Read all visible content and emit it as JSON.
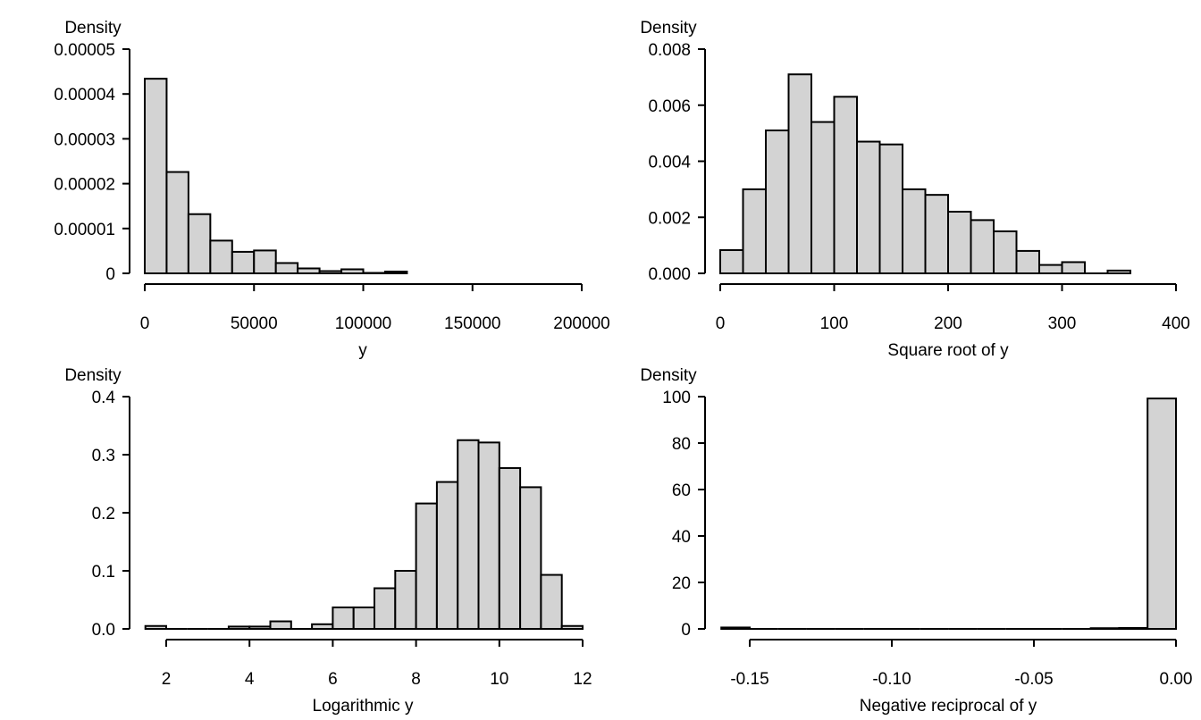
{
  "chart_data": [
    {
      "type": "bar",
      "ylabel": "Density",
      "xlabel": "y",
      "xlim": [
        0,
        200000
      ],
      "ylim": [
        0,
        5e-05
      ],
      "bin_width": 10000,
      "bin_start": 0,
      "values": [
        4.34e-05,
        2.26e-05,
        1.32e-05,
        7.3e-06,
        4.8e-06,
        5.1e-06,
        2.3e-06,
        1.1e-06,
        5e-07,
        9e-07,
        1e-07,
        4e-07
      ],
      "xticks": [
        0,
        50000,
        100000,
        150000,
        200000
      ],
      "xtick_labels": [
        "0",
        "50000",
        "100000",
        "150000",
        "200000"
      ],
      "yticks": [
        0,
        1e-05,
        2e-05,
        3e-05,
        4e-05,
        5e-05
      ],
      "ytick_labels": [
        "0",
        "0.00001",
        "0.00002",
        "0.00003",
        "0.00004",
        "0.00005"
      ],
      "bar_color": "#d3d3d3"
    },
    {
      "type": "bar",
      "ylabel": "Density",
      "xlabel": "Square root of y",
      "xlim": [
        0,
        400
      ],
      "ylim": [
        0,
        0.008
      ],
      "bin_width": 20,
      "bin_start": 0,
      "values": [
        0.00083,
        0.003,
        0.0051,
        0.0071,
        0.0054,
        0.0063,
        0.0047,
        0.0046,
        0.003,
        0.0028,
        0.0022,
        0.0019,
        0.0015,
        0.0008,
        0.0003,
        0.0004,
        0,
        0.0001
      ],
      "xticks": [
        0,
        100,
        200,
        300,
        400
      ],
      "xtick_labels": [
        "0",
        "100",
        "200",
        "300",
        "400"
      ],
      "yticks": [
        0,
        0.002,
        0.004,
        0.006,
        0.008
      ],
      "ytick_labels": [
        "0.000",
        "0.002",
        "0.004",
        "0.006",
        "0.008"
      ],
      "bar_color": "#d3d3d3"
    },
    {
      "type": "bar",
      "ylabel": "Density",
      "xlabel": "Logarithmic y",
      "xlim": [
        2,
        12
      ],
      "ylim": [
        0,
        0.4
      ],
      "bin_width": 0.5,
      "bin_start": 1.5,
      "values": [
        0.005,
        0,
        0,
        0,
        0.004,
        0.004,
        0.013,
        0,
        0.008,
        0.037,
        0.037,
        0.07,
        0.1,
        0.216,
        0.253,
        0.325,
        0.321,
        0.277,
        0.244,
        0.093,
        0.005
      ],
      "xticks": [
        2,
        4,
        6,
        8,
        10,
        12
      ],
      "xtick_labels": [
        "2",
        "4",
        "6",
        "8",
        "10",
        "12"
      ],
      "yticks": [
        0,
        0.1,
        0.2,
        0.3,
        0.4
      ],
      "ytick_labels": [
        "0.0",
        "0.1",
        "0.2",
        "0.3",
        "0.4"
      ],
      "bar_color": "#d3d3d3"
    },
    {
      "type": "bar",
      "ylabel": "Density",
      "xlabel": "Negative reciprocal of y",
      "xlim": [
        -0.15,
        0
      ],
      "ylim": [
        0,
        100
      ],
      "bin_width": 0.01,
      "bin_start": -0.16,
      "values": [
        0.6,
        0,
        0,
        0,
        0,
        0,
        0,
        0,
        0,
        0,
        0,
        0,
        0,
        0.3,
        0.4,
        99.2
      ],
      "xticks": [
        -0.15,
        -0.1,
        -0.05,
        0
      ],
      "xtick_labels": [
        "-0.15",
        "-0.10",
        "-0.05",
        "0.00"
      ],
      "yticks": [
        0,
        20,
        40,
        60,
        80,
        100
      ],
      "ytick_labels": [
        "0",
        "20",
        "40",
        "60",
        "80",
        "100"
      ],
      "bar_color": "#d3d3d3"
    }
  ]
}
